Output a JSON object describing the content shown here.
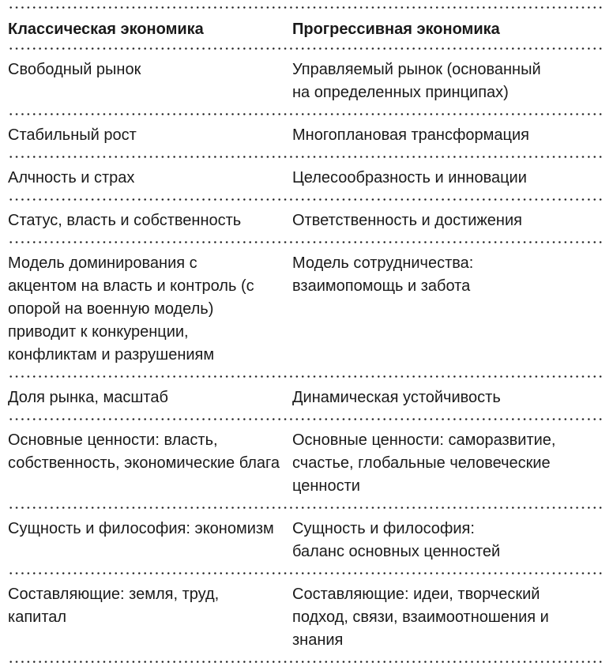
{
  "headers": [
    "Классическая экономика",
    "Прогрессивная экономика"
  ],
  "rows": [
    [
      "Свободный рынок",
      "Управляемый рынок (основанный на определенных принципах)"
    ],
    [
      "Стабильный рост",
      "Многоплановая трансформация"
    ],
    [
      "Алчность и страх",
      "Целесообразность и инновации"
    ],
    [
      "Статус, власть и собственность",
      "Ответственность и достижения"
    ],
    [
      "Модель доминирования с акцентом на власть и контроль (с опорой на военную модель) приводит к конкуренции, конфликтам и разрушениям",
      "Модель сотрудничества: взаимопомощь и забота"
    ],
    [
      "Доля рынка, масштаб",
      "Динамическая устойчивость"
    ],
    [
      "Основные ценности: власть, собственность, экономические блага",
      "Основные ценности: саморазвитие, счастье, глобальные человеческие ценности"
    ],
    [
      "Сущность и философия: экономизм",
      "Сущность и философия: баланс основных ценностей"
    ],
    [
      "Составляющие: земля, труд, капитал",
      "Составляющие: идеи, творческий подход, связи, взаимоотношения и знания"
    ]
  ]
}
